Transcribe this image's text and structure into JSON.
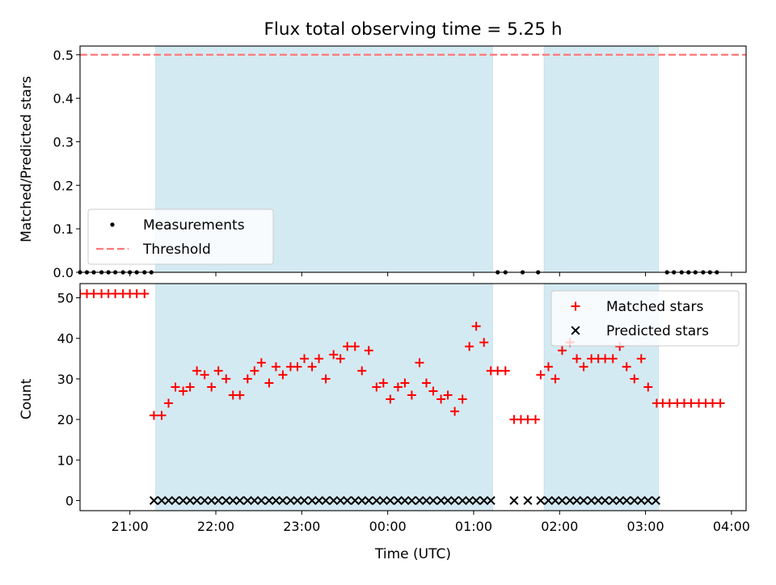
{
  "chart_data": {
    "title": "Flux total observing time = 5.25 h",
    "xlabel": "Time (UTC)",
    "x_unit": "hours UTC (values past 24 are after midnight)",
    "xlim": [
      20.42,
      28.17
    ],
    "x_ticks": [
      {
        "value": 21,
        "label": "21:00"
      },
      {
        "value": 22,
        "label": "22:00"
      },
      {
        "value": 23,
        "label": "23:00"
      },
      {
        "value": 24,
        "label": "00:00"
      },
      {
        "value": 25,
        "label": "01:00"
      },
      {
        "value": 26,
        "label": "02:00"
      },
      {
        "value": 27,
        "label": "03:00"
      },
      {
        "value": 28,
        "label": "04:00"
      }
    ],
    "shaded_intervals": [
      [
        21.3,
        25.22
      ],
      [
        25.82,
        27.15
      ]
    ],
    "shade_color": "#add8e6",
    "top": {
      "type": "scatter",
      "ylabel": "Matched/Predicted stars",
      "ylim": [
        0,
        0.52
      ],
      "y_ticks": [
        {
          "value": 0,
          "label": "0.0"
        },
        {
          "value": 0.1,
          "label": "0.1"
        },
        {
          "value": 0.2,
          "label": "0.2"
        },
        {
          "value": 0.3,
          "label": "0.3"
        },
        {
          "value": 0.4,
          "label": "0.4"
        },
        {
          "value": 0.5,
          "label": "0.5"
        }
      ],
      "legend": {
        "position": "lower-left",
        "entries": [
          "Measurements",
          "Threshold"
        ]
      },
      "series": [
        {
          "name": "Measurements",
          "color": "#000000",
          "marker": "dot",
          "x": [
            20.42,
            20.5,
            20.58,
            20.67,
            20.75,
            20.83,
            20.92,
            21.0,
            21.08,
            21.17,
            21.25,
            25.28,
            25.37,
            25.57,
            25.75,
            27.25,
            27.33,
            27.42,
            27.5,
            27.58,
            27.67,
            27.75,
            27.83
          ],
          "y": [
            0,
            0,
            0,
            0,
            0,
            0,
            0,
            0,
            0,
            0,
            0,
            0,
            0,
            0,
            0,
            0,
            0,
            0,
            0,
            0,
            0,
            0,
            0
          ]
        },
        {
          "name": "Threshold",
          "color": "#ff7777",
          "style": "dashed",
          "x": [
            20.42,
            28.17
          ],
          "y": [
            0.5,
            0.5
          ]
        }
      ]
    },
    "bottom": {
      "type": "scatter",
      "ylabel": "Count",
      "ylim": [
        -2.5,
        53.5
      ],
      "y_ticks": [
        {
          "value": 0,
          "label": "0"
        },
        {
          "value": 10,
          "label": "10"
        },
        {
          "value": 20,
          "label": "20"
        },
        {
          "value": 30,
          "label": "30"
        },
        {
          "value": 40,
          "label": "40"
        },
        {
          "value": 50,
          "label": "50"
        }
      ],
      "legend": {
        "position": "upper-right",
        "entries": [
          "Matched stars",
          "Predicted stars"
        ]
      },
      "series": [
        {
          "name": "Matched stars",
          "color": "#ff0000",
          "marker": "plus",
          "x": [
            20.42,
            20.5,
            20.58,
            20.67,
            20.75,
            20.83,
            20.92,
            21.0,
            21.08,
            21.17,
            21.28,
            21.37,
            21.45,
            21.53,
            21.62,
            21.7,
            21.78,
            21.87,
            21.95,
            22.03,
            22.12,
            22.2,
            22.28,
            22.37,
            22.45,
            22.53,
            22.62,
            22.7,
            22.78,
            22.87,
            22.95,
            23.03,
            23.12,
            23.2,
            23.28,
            23.37,
            23.45,
            23.53,
            23.62,
            23.7,
            23.78,
            23.87,
            23.95,
            24.03,
            24.12,
            24.2,
            24.28,
            24.37,
            24.45,
            24.53,
            24.62,
            24.7,
            24.78,
            24.87,
            24.95,
            25.03,
            25.12,
            25.2,
            25.28,
            25.37,
            25.47,
            25.55,
            25.63,
            25.72,
            25.78,
            25.87,
            25.95,
            26.03,
            26.12,
            26.2,
            26.28,
            26.37,
            26.45,
            26.53,
            26.62,
            26.7,
            26.78,
            26.87,
            26.95,
            27.03,
            27.13,
            27.2,
            27.28,
            27.37,
            27.45,
            27.53,
            27.62,
            27.7,
            27.78,
            27.87
          ],
          "y": [
            51,
            51,
            51,
            51,
            51,
            51,
            51,
            51,
            51,
            51,
            21,
            21,
            24,
            28,
            27,
            28,
            32,
            31,
            28,
            32,
            30,
            26,
            26,
            30,
            32,
            34,
            29,
            33,
            31,
            33,
            33,
            35,
            33,
            35,
            30,
            36,
            35,
            38,
            38,
            32,
            37,
            28,
            29,
            25,
            28,
            29,
            26,
            34,
            29,
            27,
            25,
            26,
            22,
            25,
            38,
            43,
            39,
            32,
            32,
            32,
            20,
            20,
            20,
            20,
            31,
            33,
            30,
            37,
            39,
            35,
            33,
            35,
            35,
            35,
            35,
            38,
            33,
            30,
            35,
            28,
            24,
            24,
            24,
            24,
            24,
            24,
            24,
            24,
            24,
            24
          ]
        },
        {
          "name": "Predicted stars",
          "color": "#000000",
          "marker": "x",
          "x": [
            21.28,
            21.37,
            21.45,
            21.53,
            21.62,
            21.7,
            21.78,
            21.87,
            21.95,
            22.03,
            22.12,
            22.2,
            22.28,
            22.37,
            22.45,
            22.53,
            22.62,
            22.7,
            22.78,
            22.87,
            22.95,
            23.03,
            23.12,
            23.2,
            23.28,
            23.37,
            23.45,
            23.53,
            23.62,
            23.7,
            23.78,
            23.87,
            23.95,
            24.03,
            24.12,
            24.2,
            24.28,
            24.37,
            24.45,
            24.53,
            24.62,
            24.7,
            24.78,
            24.87,
            24.95,
            25.03,
            25.12,
            25.2,
            25.47,
            25.63,
            25.78,
            25.87,
            25.95,
            26.03,
            26.12,
            26.2,
            26.28,
            26.37,
            26.45,
            26.53,
            26.62,
            26.7,
            26.78,
            26.87,
            26.95,
            27.03,
            27.12
          ],
          "y": [
            0,
            0,
            0,
            0,
            0,
            0,
            0,
            0,
            0,
            0,
            0,
            0,
            0,
            0,
            0,
            0,
            0,
            0,
            0,
            0,
            0,
            0,
            0,
            0,
            0,
            0,
            0,
            0,
            0,
            0,
            0,
            0,
            0,
            0,
            0,
            0,
            0,
            0,
            0,
            0,
            0,
            0,
            0,
            0,
            0,
            0,
            0,
            0,
            0,
            0,
            0,
            0,
            0,
            0,
            0,
            0,
            0,
            0,
            0,
            0,
            0,
            0,
            0,
            0,
            0,
            0,
            0
          ]
        }
      ]
    }
  }
}
